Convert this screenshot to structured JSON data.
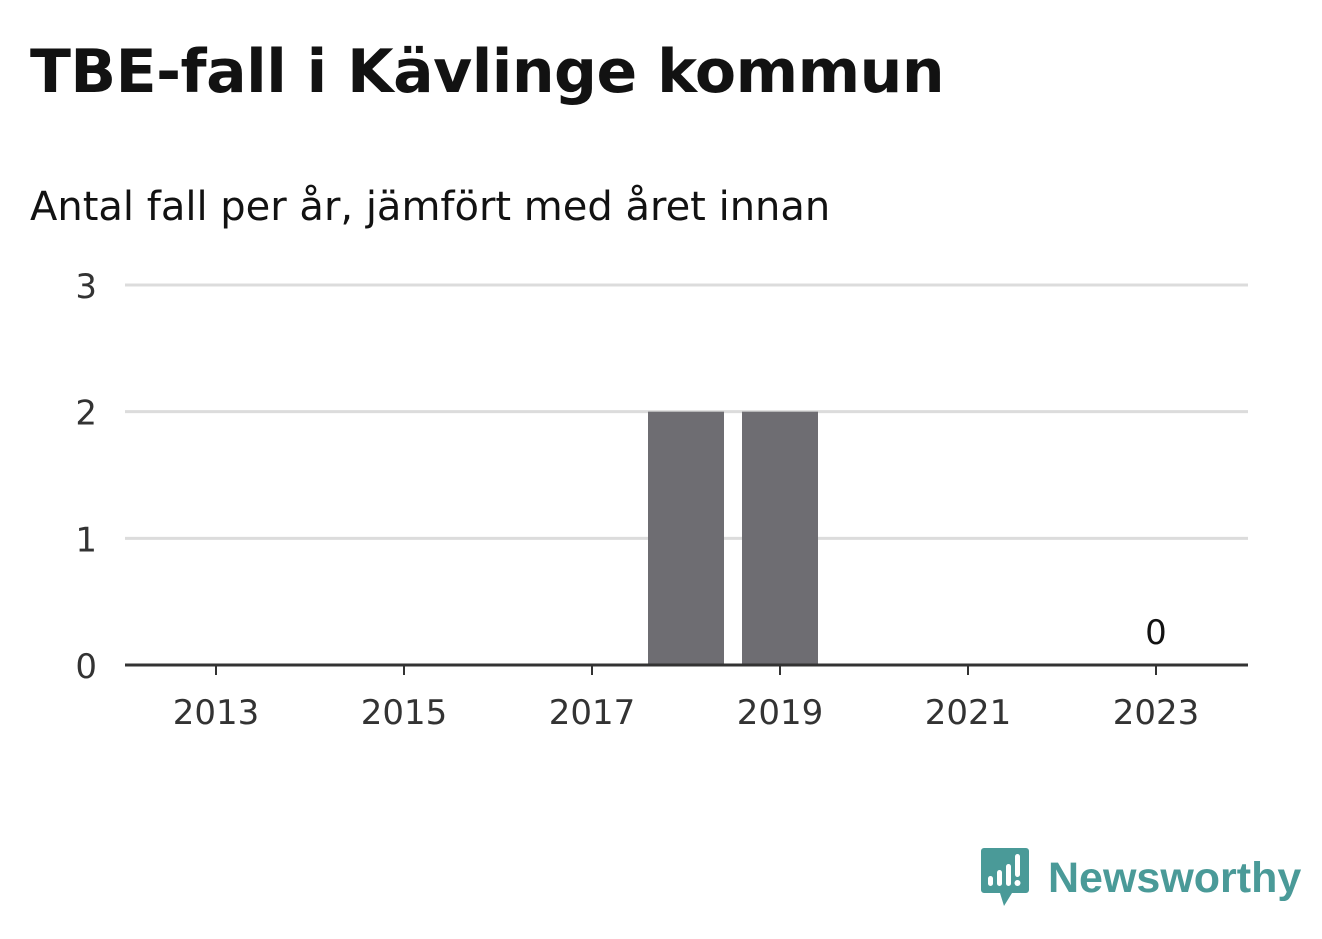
{
  "title": "TBE-fall i Kävlinge kommun",
  "subtitle": "Antal fall per år, jämfört med året innan",
  "brand": {
    "name": "Newsworthy",
    "icon": "newsworthy-logo-icon",
    "color": "#4a9a98"
  },
  "colors": {
    "bar": "#6e6d72",
    "grid": "#dcdcdc",
    "axis": "#333333",
    "text": "#121212"
  },
  "chart_data": {
    "type": "bar",
    "categories": [
      "2013",
      "2014",
      "2015",
      "2016",
      "2017",
      "2018",
      "2019",
      "2020",
      "2021",
      "2022",
      "2023"
    ],
    "values": [
      0,
      0,
      0,
      0,
      0,
      2,
      2,
      0,
      0,
      0,
      0
    ],
    "x_tick_labels": [
      "2013",
      "2015",
      "2017",
      "2019",
      "2021",
      "2023"
    ],
    "y_ticks": [
      0,
      1,
      2,
      3
    ],
    "ylim": [
      0,
      3
    ],
    "xlabel": "",
    "ylabel": "",
    "grid": true,
    "annotations": [
      {
        "category": "2023",
        "text": "0"
      }
    ]
  }
}
